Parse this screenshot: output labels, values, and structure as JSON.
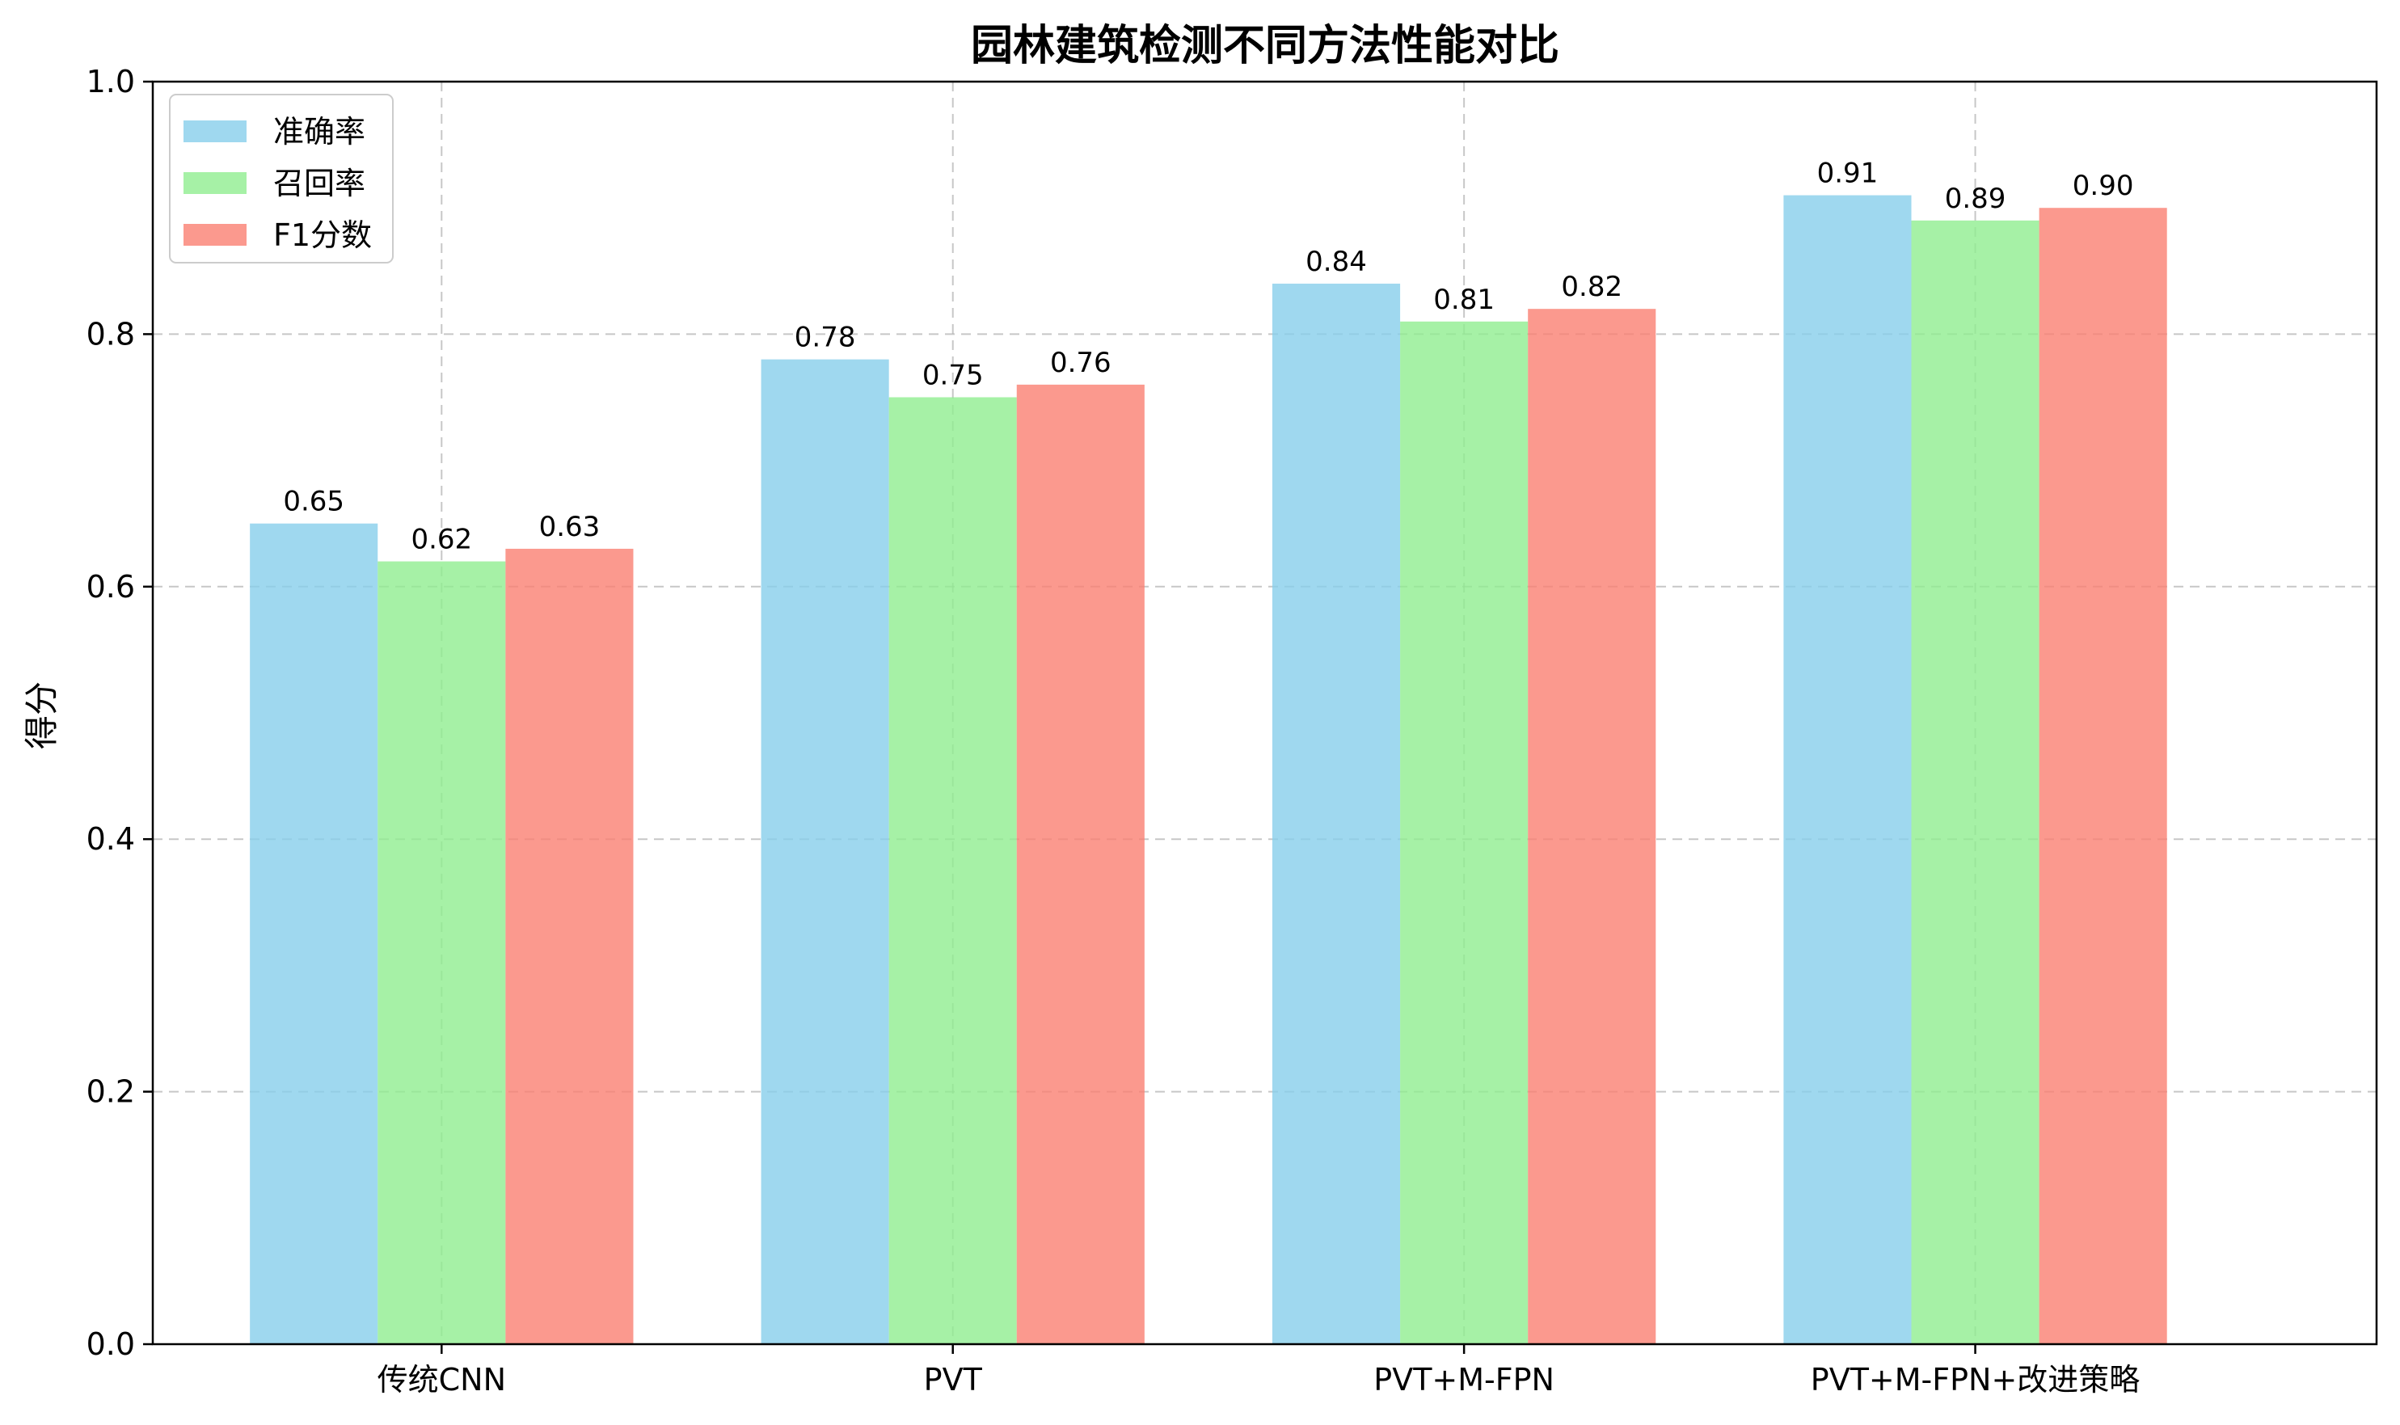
{
  "chart_data": {
    "type": "bar",
    "title": "园林建筑检测不同方法性能对比",
    "xlabel": "",
    "ylabel": "得分",
    "ylim": [
      0,
      1.0
    ],
    "yticks": [
      "0.0",
      "0.2",
      "0.4",
      "0.6",
      "0.8",
      "1.0"
    ],
    "ytick_values": [
      0,
      0.2,
      0.4,
      0.6,
      0.8,
      1.0
    ],
    "grid": true,
    "legend_position": "top-left",
    "categories": [
      "传统CNN",
      "PVT",
      "PVT+M-FPN",
      "PVT+M-FPN+改进策略"
    ],
    "series": [
      {
        "name": "准确率",
        "color": "#87CEEB",
        "values": [
          0.65,
          0.78,
          0.84,
          0.91
        ],
        "labels": [
          "0.65",
          "0.78",
          "0.84",
          "0.91"
        ]
      },
      {
        "name": "召回率",
        "color": "#90EE90",
        "values": [
          0.62,
          0.75,
          0.81,
          0.89
        ],
        "labels": [
          "0.62",
          "0.75",
          "0.81",
          "0.89"
        ]
      },
      {
        "name": "F1分数",
        "color": "#FA8072",
        "values": [
          0.63,
          0.76,
          0.82,
          0.9
        ],
        "labels": [
          "0.63",
          "0.76",
          "0.82",
          "0.90"
        ]
      }
    ]
  }
}
